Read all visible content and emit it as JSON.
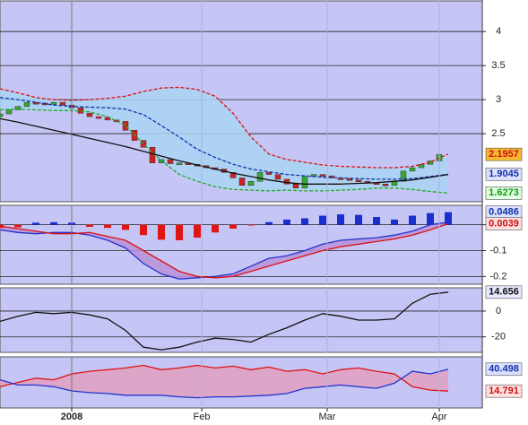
{
  "chart_data": [
    {
      "type": "candlestick",
      "xlim": [
        0,
        53.8
      ],
      "ylim": [
        1.5,
        4.45
      ],
      "yticks": [
        2.5,
        3,
        3.5,
        4
      ],
      "x": [
        0,
        2,
        4,
        6,
        8,
        10,
        12,
        14,
        16,
        18,
        20,
        22,
        24,
        26,
        28,
        30,
        32,
        34,
        36,
        38,
        40,
        42,
        44,
        46,
        48,
        50
      ],
      "candles": {
        "up_color": "#33aa33",
        "down_color": "#cc2222",
        "x": [
          0,
          1,
          2,
          3,
          4,
          5,
          6,
          7,
          8,
          9,
          10,
          11,
          12,
          13,
          14,
          15,
          16,
          17,
          18,
          19,
          20,
          21,
          22,
          23,
          24,
          25,
          26,
          27,
          28,
          29,
          30,
          31,
          32,
          33,
          34,
          35,
          36,
          37,
          38,
          39,
          40,
          41,
          42,
          43,
          44,
          45,
          46,
          47,
          48,
          49
        ],
        "open": [
          2.75,
          2.79,
          2.85,
          2.9,
          2.96,
          2.95,
          2.93,
          2.96,
          2.92,
          2.88,
          2.8,
          2.75,
          2.74,
          2.7,
          2.68,
          2.55,
          2.4,
          2.3,
          2.07,
          2.12,
          2.06,
          2.07,
          2.05,
          2.03,
          2.0,
          1.98,
          1.93,
          1.85,
          1.74,
          1.8,
          1.93,
          1.9,
          1.83,
          1.76,
          1.7,
          1.87,
          1.9,
          1.88,
          1.85,
          1.84,
          1.82,
          1.8,
          1.78,
          1.76,
          1.74,
          1.8,
          1.95,
          2.0,
          2.05,
          2.1
        ],
        "close": [
          2.79,
          2.85,
          2.9,
          2.96,
          2.95,
          2.93,
          2.96,
          2.92,
          2.88,
          2.8,
          2.75,
          2.74,
          2.7,
          2.68,
          2.55,
          2.4,
          2.3,
          2.07,
          2.12,
          2.06,
          2.07,
          2.05,
          2.03,
          2.0,
          1.98,
          1.93,
          1.85,
          1.74,
          1.8,
          1.93,
          1.9,
          1.83,
          1.76,
          1.7,
          1.87,
          1.9,
          1.88,
          1.85,
          1.84,
          1.82,
          1.8,
          1.78,
          1.76,
          1.74,
          1.8,
          1.95,
          2.0,
          2.05,
          2.1,
          2.1957
        ]
      },
      "fill_between": [
        0,
        2
      ],
      "fill_color": "#a9d4f2",
      "series": [
        {
          "color": "#dd1111",
          "dash": true,
          "values": [
            3.16,
            3.1,
            3.03,
            3.0,
            2.99,
            3.0,
            3.02,
            3.05,
            3.12,
            3.17,
            3.18,
            3.15,
            3.05,
            2.8,
            2.45,
            2.2,
            2.12,
            2.08,
            2.04,
            2.02,
            2.01,
            2.0,
            2.0,
            2.02,
            2.08,
            2.2
          ]
        },
        {
          "color": "#1133aa",
          "dash": true,
          "values": [
            3.03,
            3.0,
            2.96,
            2.92,
            2.9,
            2.89,
            2.88,
            2.86,
            2.78,
            2.62,
            2.45,
            2.27,
            2.15,
            2.05,
            1.98,
            1.94,
            1.9,
            1.88,
            1.86,
            1.85,
            1.84,
            1.83,
            1.83,
            1.84,
            1.87,
            1.9045
          ]
        },
        {
          "color": "#22aa22",
          "dash": true,
          "values": [
            2.85,
            2.86,
            2.85,
            2.84,
            2.84,
            2.82,
            2.75,
            2.62,
            2.35,
            2.1,
            1.9,
            1.8,
            1.72,
            1.68,
            1.67,
            1.66,
            1.67,
            1.66,
            1.66,
            1.67,
            1.68,
            1.7,
            1.7,
            1.68,
            1.65,
            1.6273
          ]
        },
        {
          "color": "#111111",
          "dash": false,
          "values": [
            2.72,
            2.67,
            2.61,
            2.55,
            2.49,
            2.43,
            2.37,
            2.31,
            2.24,
            2.17,
            2.1,
            2.04,
            1.98,
            1.92,
            1.87,
            1.82,
            1.78,
            1.76,
            1.76,
            1.76,
            1.77,
            1.78,
            1.8,
            1.82,
            1.86,
            1.9
          ]
        }
      ],
      "last_labels": [
        {
          "value": 2.1957,
          "color": "#cc1111",
          "bg": "#f5b830"
        },
        {
          "value": 1.9045,
          "color": "#1133aa",
          "bg": "#dde0ff"
        },
        {
          "value": 1.6273,
          "color": "#119911",
          "bg": "#e0ffe0"
        }
      ]
    },
    {
      "type": "macd",
      "xlim": [
        0,
        53.8
      ],
      "ylim": [
        -0.23,
        0.075
      ],
      "yticks": [
        0,
        -0.1,
        -0.2
      ],
      "x": [
        0,
        2,
        4,
        6,
        8,
        10,
        12,
        14,
        16,
        18,
        20,
        22,
        24,
        26,
        28,
        30,
        32,
        34,
        36,
        38,
        40,
        42,
        44,
        46,
        48,
        50
      ],
      "bars": {
        "up_color": "#1a2fd0",
        "down_color": "#e01515",
        "values": [
          -0.012,
          -0.01,
          0.008,
          0.01,
          0.008,
          -0.008,
          -0.012,
          -0.02,
          -0.04,
          -0.058,
          -0.06,
          -0.05,
          -0.03,
          -0.015,
          -0.003,
          0.01,
          0.02,
          0.025,
          0.035,
          0.04,
          0.038,
          0.03,
          0.02,
          0.035,
          0.045,
          0.0486
        ]
      },
      "fill_between": [
        0,
        1
      ],
      "fill_color": "#b890d8",
      "series": [
        {
          "color": "#2233cc",
          "dash": false,
          "values": [
            -0.02,
            -0.03,
            -0.035,
            -0.03,
            -0.03,
            -0.04,
            -0.06,
            -0.09,
            -0.15,
            -0.19,
            -0.21,
            -0.205,
            -0.2,
            -0.19,
            -0.16,
            -0.13,
            -0.12,
            -0.1,
            -0.075,
            -0.06,
            -0.055,
            -0.05,
            -0.04,
            -0.025,
            0.0,
            0.01
          ]
        },
        {
          "color": "#dd1111",
          "dash": false,
          "values": [
            -0.005,
            -0.015,
            -0.025,
            -0.035,
            -0.035,
            -0.03,
            -0.045,
            -0.06,
            -0.1,
            -0.14,
            -0.18,
            -0.2,
            -0.205,
            -0.2,
            -0.18,
            -0.16,
            -0.14,
            -0.12,
            -0.1,
            -0.085,
            -0.075,
            -0.065,
            -0.055,
            -0.04,
            -0.02,
            0.0039
          ]
        }
      ],
      "last_labels": [
        {
          "value": 0.0486,
          "color": "#1133aa",
          "bg": "#dde0ff"
        },
        {
          "value": 0.0039,
          "color": "#cc1111",
          "bg": "#ffe0e0"
        }
      ]
    },
    {
      "type": "line",
      "xlim": [
        0,
        53.8
      ],
      "ylim": [
        -32,
        18
      ],
      "yticks": [
        0,
        -20
      ],
      "x": [
        0,
        2,
        4,
        6,
        8,
        10,
        12,
        14,
        16,
        18,
        20,
        22,
        24,
        26,
        28,
        30,
        32,
        34,
        36,
        38,
        40,
        42,
        44,
        46,
        48,
        50
      ],
      "series": [
        {
          "color": "#111111",
          "dash": false,
          "values": [
            -8,
            -4,
            -1,
            -2,
            -1,
            -3,
            -6,
            -15,
            -28,
            -30,
            -28,
            -24,
            -21,
            -22,
            -24,
            -18,
            -13,
            -7,
            -2,
            -4,
            -7,
            -7,
            -6,
            6,
            13,
            14.656
          ]
        }
      ],
      "last_labels": [
        {
          "value": 14.656,
          "color": "#111111",
          "bg": "#e8e8ff"
        }
      ]
    },
    {
      "type": "line",
      "xlim": [
        0,
        53.8
      ],
      "ylim": [
        -5,
        55
      ],
      "xticks": [
        {
          "value": 8,
          "label": "2008"
        },
        {
          "value": 22.5,
          "label": "Feb"
        },
        {
          "value": 36.5,
          "label": "Mar"
        },
        {
          "value": 49,
          "label": "Apr"
        }
      ],
      "x": [
        0,
        2,
        4,
        6,
        8,
        10,
        12,
        14,
        16,
        18,
        20,
        22,
        24,
        26,
        28,
        30,
        32,
        34,
        36,
        38,
        40,
        42,
        44,
        46,
        48,
        50
      ],
      "fill_between": [
        0,
        1
      ],
      "fill_color": "#e0a0c0",
      "series": [
        {
          "color": "#dd1111",
          "dash": false,
          "values": [
            20,
            25,
            30,
            28,
            35,
            38,
            40,
            42,
            45,
            40,
            42,
            45,
            42,
            44,
            40,
            43,
            38,
            40,
            35,
            40,
            42,
            38,
            35,
            20,
            16,
            14.791
          ]
        },
        {
          "color": "#2233cc",
          "dash": false,
          "values": [
            28,
            22,
            22,
            20,
            15,
            13,
            12,
            10,
            10,
            10,
            8,
            7,
            8,
            8,
            9,
            10,
            12,
            18,
            20,
            22,
            20,
            18,
            24,
            38,
            35,
            40.498
          ]
        }
      ],
      "last_labels": [
        {
          "value": 40.498,
          "color": "#1133aa",
          "bg": "#dde0ff"
        },
        {
          "value": 14.791,
          "color": "#cc1111",
          "bg": "#ffe0e0"
        }
      ]
    }
  ]
}
